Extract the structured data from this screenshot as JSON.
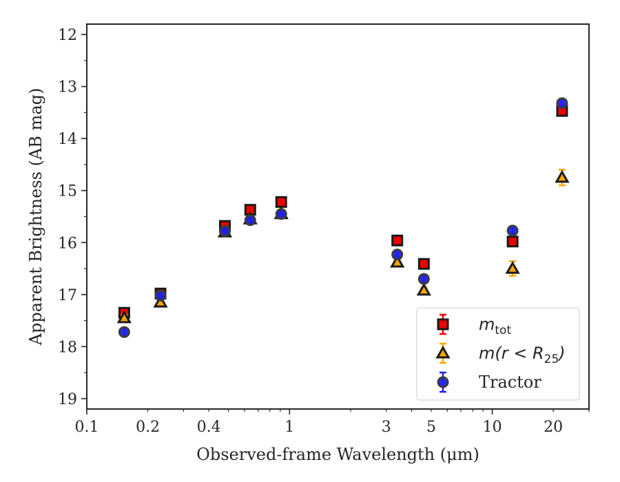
{
  "chart_data": {
    "type": "scatter",
    "xlabel": "Observed-frame Wavelength (μm)",
    "ylabel": "Apparent Brightness (AB mag)",
    "xscale": "log",
    "xlim": [
      0.1,
      30
    ],
    "ylim": [
      19.2,
      11.8
    ],
    "y_inverted": true,
    "x_ticks": [
      0.1,
      0.2,
      0.4,
      1,
      3,
      5,
      10,
      20
    ],
    "x_tick_labels": [
      "0.1",
      "0.2",
      "0.4",
      "1",
      "3",
      "5",
      "10",
      "20"
    ],
    "y_ticks": [
      12,
      13,
      14,
      15,
      16,
      17,
      18,
      19
    ],
    "y_tick_labels": [
      "12",
      "13",
      "14",
      "15",
      "16",
      "17",
      "18",
      "19"
    ],
    "grid": false,
    "legend_position": "bottom-right",
    "series": [
      {
        "name_main": "m",
        "name_sub": "tot",
        "name_rest": "",
        "marker": "square",
        "color": "#ee0000",
        "edge": "#1a1a1a",
        "x": [
          0.153,
          0.231,
          0.48,
          0.64,
          0.91,
          3.4,
          4.6,
          12.6,
          22.1
        ],
        "y": [
          17.35,
          16.98,
          15.68,
          15.37,
          15.22,
          15.96,
          16.41,
          15.98,
          13.47
        ],
        "yerr": [
          0.06,
          0.05,
          0.03,
          0.03,
          0.03,
          0.03,
          0.04,
          0.05,
          0.06
        ]
      },
      {
        "name_main": "m(r < R",
        "name_sub": "25",
        "name_rest": ")",
        "marker": "triangle",
        "color": "#ffa500",
        "edge": "#1a1a1a",
        "x": [
          0.153,
          0.231,
          0.48,
          0.64,
          0.91,
          3.4,
          4.6,
          12.6,
          22.1
        ],
        "y": [
          17.45,
          17.15,
          15.8,
          15.55,
          15.45,
          16.38,
          16.92,
          16.5,
          14.75
        ],
        "yerr": [
          0.06,
          0.05,
          0.03,
          0.03,
          0.03,
          0.04,
          0.05,
          0.14,
          0.15
        ]
      },
      {
        "name_main": "Tractor",
        "name_sub": "",
        "name_rest": "",
        "marker": "circle",
        "color": "#2020ee",
        "edge": "#3c3c3c",
        "x": [
          0.153,
          0.231,
          0.48,
          0.64,
          0.91,
          3.4,
          4.6,
          12.6,
          22.1
        ],
        "y": [
          17.72,
          17.02,
          15.78,
          15.57,
          15.45,
          16.23,
          16.7,
          15.77,
          13.32
        ],
        "yerr": [
          0.07,
          0.06,
          0.04,
          0.03,
          0.03,
          0.04,
          0.06,
          0.06,
          0.08
        ]
      }
    ]
  }
}
